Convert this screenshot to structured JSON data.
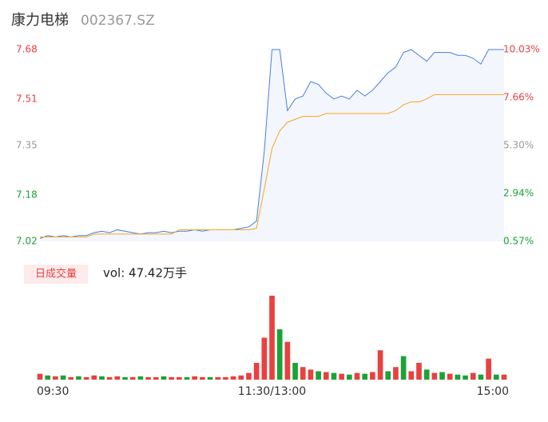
{
  "header": {
    "name": "康力电梯",
    "code": "002367.SZ"
  },
  "chart_data": {
    "type": "intraday",
    "yticks": [
      7.68,
      7.51,
      7.35,
      7.18,
      7.02
    ],
    "ylim": [
      7.02,
      7.68
    ],
    "ytick_colors": [
      "#e8413f",
      "#e8413f",
      "#999999",
      "#1aa337",
      "#1aa337"
    ],
    "y2lim": [
      0.57,
      10.03
    ],
    "y2ticks": [
      {
        "value": 10.03,
        "label": "10.03%"
      },
      {
        "value": 7.66,
        "label": "7.66%"
      },
      {
        "value": 5.3,
        "label": "5.30%"
      },
      {
        "value": 2.94,
        "label": "2.94%"
      },
      {
        "value": 0.57,
        "label": "0.57%"
      }
    ],
    "xticks": [
      {
        "value": 0,
        "label": "09:30"
      },
      {
        "value": 30,
        "label": "11:30/13:00"
      },
      {
        "value": 60,
        "label": "15:00"
      }
    ],
    "series": [
      {
        "name": "price",
        "color": "#4a7ee0",
        "values": [
          7.03,
          7.04,
          7.035,
          7.04,
          7.035,
          7.04,
          7.04,
          7.05,
          7.055,
          7.05,
          7.06,
          7.055,
          7.05,
          7.045,
          7.05,
          7.05,
          7.055,
          7.05,
          7.055,
          7.055,
          7.06,
          7.055,
          7.06,
          7.06,
          7.06,
          7.06,
          7.065,
          7.07,
          7.09,
          7.33,
          7.68,
          7.68,
          7.47,
          7.51,
          7.52,
          7.57,
          7.56,
          7.53,
          7.51,
          7.52,
          7.51,
          7.54,
          7.52,
          7.54,
          7.57,
          7.6,
          7.62,
          7.67,
          7.68,
          7.66,
          7.64,
          7.67,
          7.67,
          7.67,
          7.66,
          7.66,
          7.65,
          7.63,
          7.68,
          7.68,
          7.68
        ]
      },
      {
        "name": "average",
        "color": "#f5a623",
        "values": [
          7.035,
          7.035,
          7.035,
          7.035,
          7.035,
          7.035,
          7.035,
          7.045,
          7.045,
          7.045,
          7.045,
          7.045,
          7.045,
          7.045,
          7.045,
          7.045,
          7.045,
          7.045,
          7.06,
          7.06,
          7.06,
          7.06,
          7.06,
          7.06,
          7.06,
          7.06,
          7.06,
          7.06,
          7.065,
          7.2,
          7.34,
          7.4,
          7.43,
          7.44,
          7.45,
          7.45,
          7.45,
          7.46,
          7.46,
          7.46,
          7.46,
          7.46,
          7.46,
          7.46,
          7.46,
          7.46,
          7.47,
          7.49,
          7.5,
          7.5,
          7.51,
          7.525,
          7.525,
          7.525,
          7.525,
          7.525,
          7.525,
          7.525,
          7.525,
          7.525,
          7.525
        ]
      }
    ],
    "volume": {
      "legend": "日成交量",
      "label": "vol: 47.42万手",
      "values": [
        7,
        5,
        4,
        5,
        3,
        4,
        3,
        5,
        4,
        3,
        4,
        3,
        3,
        4,
        3,
        3,
        4,
        3,
        3,
        3,
        4,
        3,
        3,
        3,
        3,
        4,
        5,
        8,
        20,
        50,
        100,
        60,
        45,
        20,
        15,
        12,
        10,
        9,
        8,
        7,
        6,
        8,
        7,
        9,
        35,
        10,
        15,
        28,
        10,
        20,
        12,
        8,
        9,
        7,
        6,
        5,
        8,
        6,
        25,
        6,
        6
      ],
      "colors": [
        "#e8413f",
        "#1aa337",
        "#e8413f",
        "#1aa337",
        "#e8413f",
        "#1aa337",
        "#e8413f",
        "#e8413f",
        "#1aa337",
        "#e8413f",
        "#e8413f",
        "#1aa337",
        "#e8413f",
        "#1aa337",
        "#e8413f",
        "#e8413f",
        "#1aa337",
        "#e8413f",
        "#e8413f",
        "#1aa337",
        "#e8413f",
        "#e8413f",
        "#1aa337",
        "#e8413f",
        "#e8413f",
        "#e8413f",
        "#e8413f",
        "#e8413f",
        "#e8413f",
        "#e8413f",
        "#e8413f",
        "#1aa337",
        "#e8413f",
        "#1aa337",
        "#e8413f",
        "#e8413f",
        "#1aa337",
        "#e8413f",
        "#1aa337",
        "#e8413f",
        "#1aa337",
        "#e8413f",
        "#1aa337",
        "#e8413f",
        "#e8413f",
        "#1aa337",
        "#e8413f",
        "#1aa337",
        "#e8413f",
        "#e8413f",
        "#1aa337",
        "#e8413f",
        "#1aa337",
        "#e8413f",
        "#1aa337",
        "#1aa337",
        "#e8413f",
        "#1aa337",
        "#e8413f",
        "#1aa337",
        "#e8413f"
      ]
    }
  }
}
